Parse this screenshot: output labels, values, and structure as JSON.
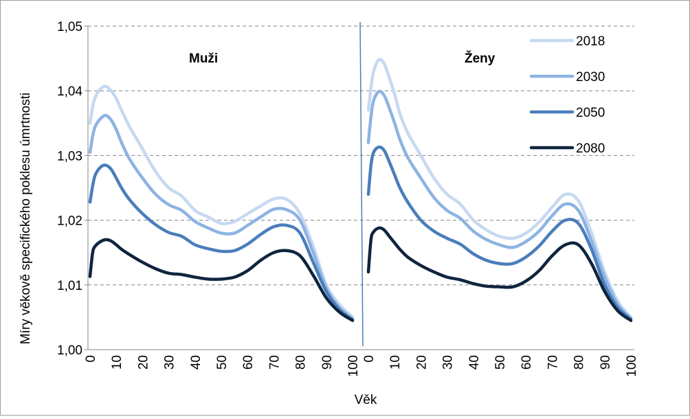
{
  "chart_data": {
    "type": "line",
    "ylabel": "Míry věkově specifického poklesu úmrtnosti",
    "xlabel": "Věk",
    "ylim": [
      1.0,
      1.05
    ],
    "y_ticks": [
      "1,00",
      "1,01",
      "1,02",
      "1,03",
      "1,04",
      "1,05"
    ],
    "y_tick_values": [
      1.0,
      1.01,
      1.02,
      1.03,
      1.04,
      1.05
    ],
    "x_ticks": [
      0,
      10,
      20,
      30,
      40,
      50,
      60,
      70,
      80,
      90,
      100
    ],
    "x_tick_labels": [
      "0",
      "10",
      "20",
      "30",
      "40",
      "50",
      "60",
      "70",
      "80",
      "90",
      "100"
    ],
    "grid": true,
    "legend_position": "top-right",
    "colors": {
      "2018": "#c6d9f0",
      "2030": "#8db3e2",
      "2050": "#4a7ebb",
      "2080": "#0f243e",
      "divider": "#4a7ebb",
      "grid": "#808080"
    },
    "panels": [
      {
        "title": "Muži",
        "x": [
          0,
          1,
          2,
          4,
          6,
          8,
          10,
          12,
          15,
          20,
          25,
          30,
          35,
          40,
          45,
          50,
          55,
          60,
          65,
          70,
          75,
          80,
          85,
          90,
          95,
          100
        ],
        "series": [
          {
            "name": "2018",
            "values": [
              1.035,
              1.0375,
              1.039,
              1.0403,
              1.0407,
              1.04,
              1.0388,
              1.037,
              1.0345,
              1.031,
              1.0275,
              1.025,
              1.0237,
              1.0215,
              1.0205,
              1.0195,
              1.0198,
              1.021,
              1.0222,
              1.0233,
              1.0232,
              1.021,
              1.016,
              1.01,
              1.007,
              1.005
            ]
          },
          {
            "name": "2030",
            "values": [
              1.0305,
              1.033,
              1.0345,
              1.0357,
              1.0362,
              1.0355,
              1.034,
              1.032,
              1.0295,
              1.0265,
              1.024,
              1.0224,
              1.0215,
              1.0198,
              1.0188,
              1.018,
              1.018,
              1.0192,
              1.0205,
              1.0217,
              1.0216,
              1.02,
              1.015,
              1.0095,
              1.0065,
              1.0048
            ]
          },
          {
            "name": "2050",
            "values": [
              1.0228,
              1.0253,
              1.027,
              1.0282,
              1.0285,
              1.0279,
              1.0265,
              1.025,
              1.0232,
              1.021,
              1.0193,
              1.0181,
              1.0175,
              1.0162,
              1.0156,
              1.0152,
              1.0153,
              1.0163,
              1.0178,
              1.019,
              1.0192,
              1.018,
              1.0135,
              1.009,
              1.0062,
              1.0046
            ]
          },
          {
            "name": "2080",
            "values": [
              1.0113,
              1.015,
              1.016,
              1.0167,
              1.017,
              1.0168,
              1.0162,
              1.0155,
              1.0147,
              1.0135,
              1.0125,
              1.0118,
              1.0116,
              1.0112,
              1.0109,
              1.0109,
              1.0112,
              1.0122,
              1.0138,
              1.015,
              1.0153,
              1.0145,
              1.0115,
              1.008,
              1.0058,
              1.0045
            ]
          }
        ]
      },
      {
        "title": "Ženy",
        "x": [
          0,
          1,
          2,
          4,
          6,
          8,
          10,
          12,
          15,
          20,
          25,
          30,
          35,
          40,
          45,
          50,
          55,
          60,
          65,
          70,
          75,
          80,
          85,
          90,
          95,
          100
        ],
        "series": [
          {
            "name": "2018",
            "values": [
              1.037,
              1.0405,
              1.043,
              1.0448,
              1.0442,
              1.042,
              1.0395,
              1.0365,
              1.0335,
              1.03,
              1.0265,
              1.024,
              1.0225,
              1.02,
              1.0185,
              1.0175,
              1.0172,
              1.018,
              1.0197,
              1.022,
              1.024,
              1.023,
              1.018,
              1.012,
              1.0075,
              1.005
            ]
          },
          {
            "name": "2030",
            "values": [
              1.032,
              1.036,
              1.0385,
              1.0399,
              1.0393,
              1.0373,
              1.035,
              1.0325,
              1.0297,
              1.0265,
              1.0235,
              1.0215,
              1.0203,
              1.0183,
              1.017,
              1.0162,
              1.0158,
              1.0167,
              1.0183,
              1.0207,
              1.0225,
              1.0215,
              1.0168,
              1.0112,
              1.007,
              1.0048
            ]
          },
          {
            "name": "2050",
            "values": [
              1.024,
              1.0285,
              1.0305,
              1.0313,
              1.0308,
              1.029,
              1.027,
              1.025,
              1.0228,
              1.02,
              1.0183,
              1.0172,
              1.0163,
              1.0148,
              1.0138,
              1.0133,
              1.0133,
              1.0143,
              1.016,
              1.0183,
              1.02,
              1.0195,
              1.0155,
              1.01,
              1.0065,
              1.0047
            ]
          },
          {
            "name": "2080",
            "values": [
              1.012,
              1.017,
              1.0182,
              1.0188,
              1.0185,
              1.0175,
              1.0165,
              1.0155,
              1.0143,
              1.013,
              1.012,
              1.0112,
              1.0108,
              1.0102,
              1.0098,
              1.0097,
              1.0097,
              1.0106,
              1.0122,
              1.0145,
              1.0162,
              1.0162,
              1.0133,
              1.009,
              1.006,
              1.0045
            ]
          }
        ]
      }
    ]
  }
}
